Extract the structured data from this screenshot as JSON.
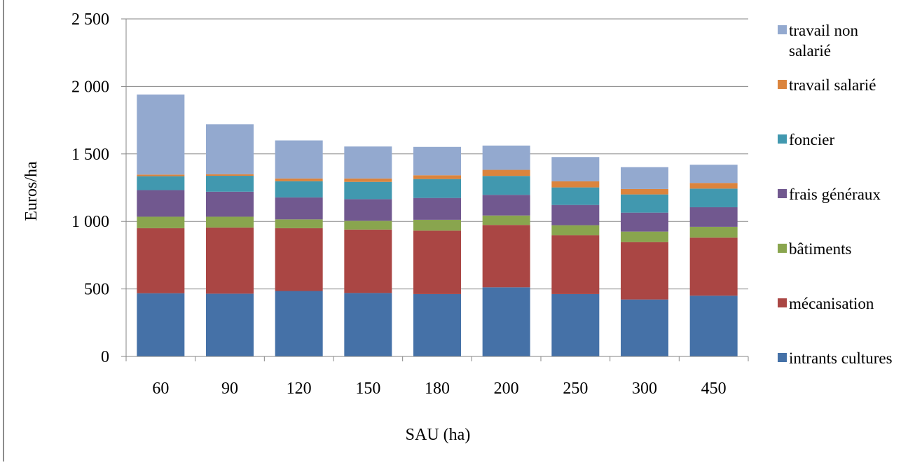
{
  "chart_data": {
    "type": "bar",
    "stacked": true,
    "title": "",
    "xlabel": "SAU (ha)",
    "ylabel": "Euros/ha",
    "ylim": [
      0,
      2500
    ],
    "yticks": [
      0,
      500,
      1000,
      1500,
      2000,
      2500
    ],
    "ytick_labels": [
      "0",
      "500",
      "1 000",
      "1 500",
      "2 000",
      "2 500"
    ],
    "grid": "horizontal",
    "legend_position": "right",
    "categories": [
      "60",
      "90",
      "120",
      "150",
      "180",
      "200",
      "250",
      "300",
      "450"
    ],
    "series": [
      {
        "name": "intrants cultures",
        "color": "#4571a7",
        "values": [
          468,
          465,
          485,
          470,
          462,
          512,
          462,
          422,
          450
        ]
      },
      {
        "name": "mécanisation",
        "color": "#aa4644",
        "values": [
          482,
          490,
          465,
          470,
          470,
          462,
          435,
          425,
          430
        ]
      },
      {
        "name": "bâtiments",
        "color": "#89a54e",
        "values": [
          85,
          80,
          65,
          65,
          80,
          70,
          75,
          78,
          80
        ]
      },
      {
        "name": "frais généraux",
        "color": "#71588f",
        "values": [
          197,
          185,
          163,
          160,
          162,
          153,
          150,
          140,
          145
        ]
      },
      {
        "name": "foncier",
        "color": "#4198af",
        "values": [
          103,
          118,
          120,
          128,
          140,
          140,
          130,
          135,
          138
        ]
      },
      {
        "name": "travail salarié",
        "color": "#db843d",
        "values": [
          12,
          12,
          20,
          25,
          28,
          45,
          45,
          40,
          42
        ]
      },
      {
        "name": "travail non salarié",
        "color": "#93a9cf",
        "values": [
          593,
          370,
          282,
          237,
          210,
          180,
          180,
          162,
          135
        ]
      }
    ],
    "legend_order": [
      "travail non salarié",
      "travail salarié",
      "foncier",
      "frais généraux",
      "bâtiments",
      "mécanisation",
      "intrants cultures"
    ]
  }
}
